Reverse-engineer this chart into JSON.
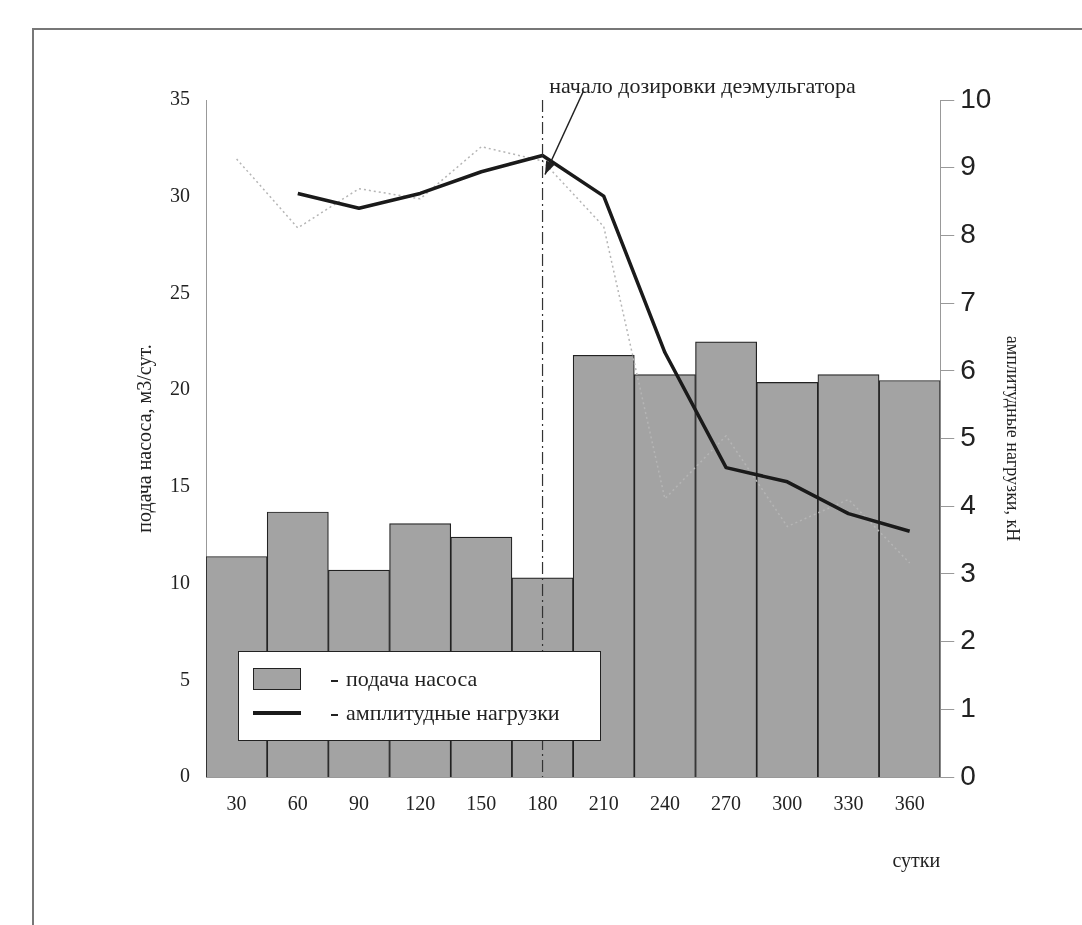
{
  "chart_data": {
    "type": "bar",
    "xlabel": "сутки",
    "ylabel": "подача насоса, м3/сут.",
    "y2label": "амплитудные нагрузки, кН",
    "categories": [
      "30",
      "60",
      "90",
      "120",
      "150",
      "180",
      "210",
      "240",
      "270",
      "300",
      "330",
      "360"
    ],
    "series": [
      {
        "name": "подача насоса",
        "color": "#a3a3a3",
        "values": [
          11.4,
          13.7,
          10.7,
          13.1,
          12.4,
          10.3,
          21.8,
          20.8,
          22.5,
          20.4,
          20.8,
          20.5
        ]
      },
      {
        "name": "амплитудные нагрузки",
        "type": "line",
        "axis": "y2",
        "color": "#1a1a1a",
        "line_style": "solid",
        "values": [
          null,
          8.62,
          8.4,
          8.62,
          8.94,
          9.18,
          8.58,
          6.27,
          4.57,
          4.36,
          3.89,
          3.63
        ]
      },
      {
        "type": "line",
        "axis": "y2",
        "color": "#b5b5b5",
        "line_style": "dotted",
        "values": [
          9.13,
          8.11,
          8.69,
          8.54,
          9.31,
          9.1,
          8.13,
          4.11,
          5.04,
          3.7,
          4.1,
          3.16
        ]
      }
    ],
    "ylim": [
      0,
      35
    ],
    "yticks": [
      0,
      5,
      10,
      15,
      20,
      25,
      30,
      35
    ],
    "y2lim": [
      0,
      10
    ],
    "y2ticks": [
      0,
      1,
      2,
      3,
      4,
      5,
      6,
      7,
      8,
      9,
      10
    ],
    "ref_lines": [
      {
        "axis": "x",
        "value": "180",
        "label": "начало дозировки деэмульгатора",
        "line_style": "dashdot",
        "color": "#333333"
      }
    ],
    "legend": "bottom left",
    "marker": "none",
    "grid": false
  }
}
